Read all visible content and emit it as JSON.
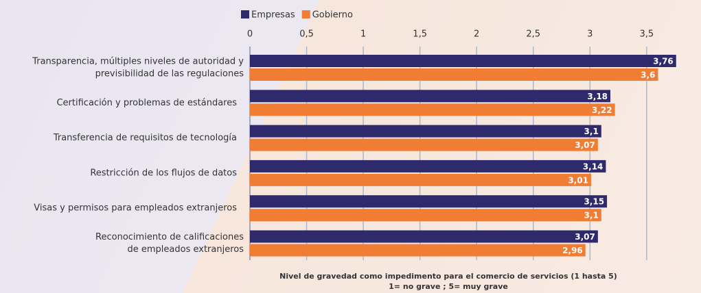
{
  "chart_data": {
    "type": "barh",
    "categories": [
      [
        "Transparencia, múltiples niveles de autoridad y",
        "previsibilidad de las regulaciones"
      ],
      "Certificación y problemas de estándares",
      "Transferencia de requisitos de tecnología",
      "Restricción de los flujos de datos",
      "Visas y permisos para empleados extranjeros",
      [
        "Reconocimiento de calificaciones",
        "de empleados extranjeros"
      ]
    ],
    "series": [
      {
        "name": "Empresas",
        "color": "#2e2a6c",
        "values": [
          3.76,
          3.18,
          3.1,
          3.14,
          3.15,
          3.07
        ],
        "value_labels": [
          "3,76",
          "3,18",
          "3,1",
          "3,14",
          "3,15",
          "3,07"
        ]
      },
      {
        "name": "Gobierno",
        "color": "#f07d33",
        "values": [
          3.6,
          3.22,
          3.07,
          3.01,
          3.1,
          2.96
        ],
        "value_labels": [
          "3,6",
          "3,22",
          "3,07",
          "3,01",
          "3,1",
          "2,96"
        ]
      }
    ],
    "xlim": [
      0,
      3.8
    ],
    "xticks": [
      0,
      {
        "value": 0.5,
        "label": "0,5"
      },
      1,
      {
        "value": 1.5,
        "label": "1,5"
      },
      2,
      {
        "value": 2.5,
        "label": "2,5"
      },
      3,
      {
        "value": 3.5,
        "label": "3,5"
      }
    ],
    "x_label": [
      "Nivel de gravedad como impedimento para el comercio de servicios (1 hasta 5)",
      "1= no grave ; 5= muy grave"
    ],
    "grid": true,
    "legend": "top"
  }
}
